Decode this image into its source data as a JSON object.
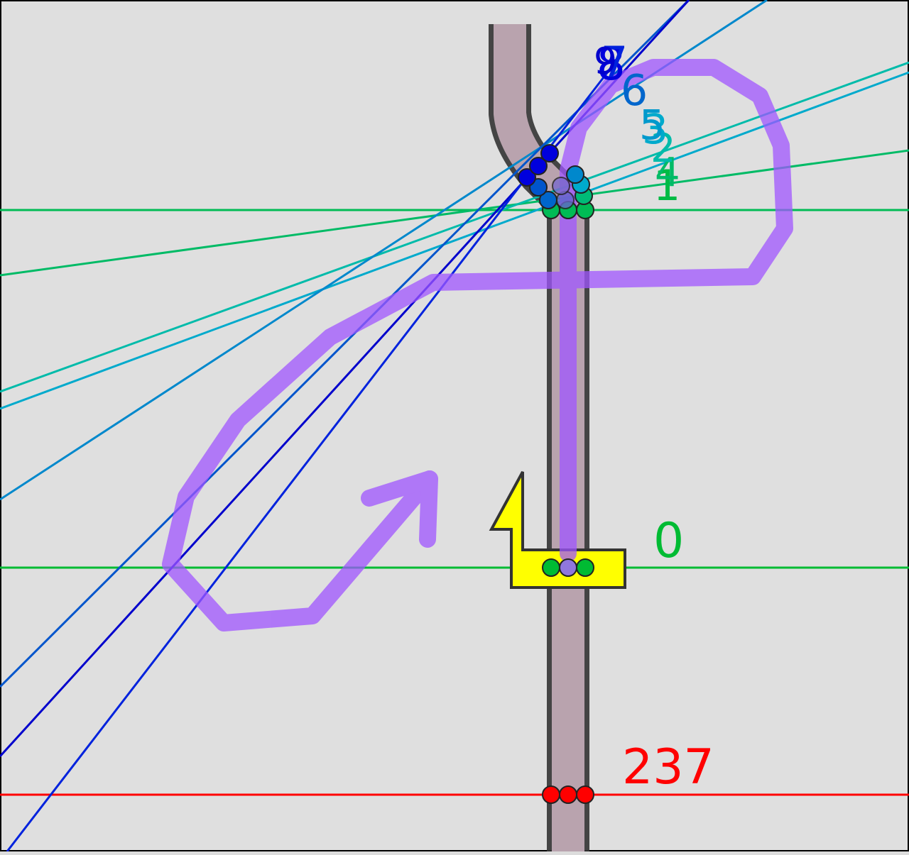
{
  "diagram": {
    "colors": {
      "background": "#dfdfdf",
      "frame": "#000000",
      "road_fill": "#b9a3ae",
      "road_edge": "#333333",
      "cursor_fill": "#ffff00",
      "path_stroke": "#a055ff",
      "red": "#ff0000",
      "green": "#00bb33"
    },
    "labels": {
      "final": "237",
      "start": "0",
      "l1": "1",
      "l2": "2",
      "l3": "3",
      "l4": "4",
      "l5": "5",
      "l6": "6",
      "l7": "7",
      "l8": "8",
      "l9": "9"
    },
    "label_colors": {
      "final": "#ff0000",
      "start": "#00bb33",
      "l1": "#00bb44",
      "l2": "#00bbaa",
      "l3": "#00aacc",
      "l4": "#00bb66",
      "l5": "#0099cc",
      "l6": "#0066cc",
      "l7": "#0022dd",
      "l8": "#0000dd",
      "l9": "#0000cc"
    },
    "icons": {
      "cursor": "lightning-cursor-icon",
      "direction": "arrow-icon"
    }
  }
}
